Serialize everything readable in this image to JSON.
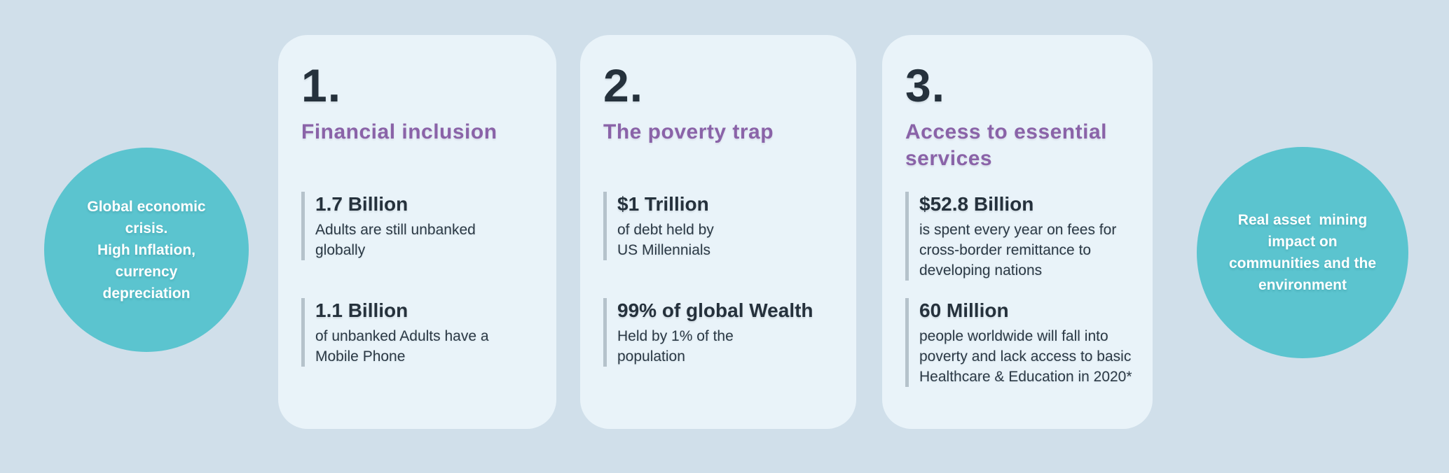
{
  "colors": {
    "background": "#d0dfea",
    "card_background": "#e9f3f9",
    "accent_teal": "#5bc4cf",
    "accent_purple": "#8a63a8",
    "text_dark": "#25313c",
    "stat_bar": "#b5c2cb",
    "circle_text": "#ffffff"
  },
  "left_circle": {
    "text": "Global economic\ncrisis.\nHigh Inflation,\ncurrency\ndepreciation"
  },
  "right_circle": {
    "text": "Real asset  mining\nimpact on\ncommunities and the\nenvironment"
  },
  "cards": [
    {
      "number": "1.",
      "title": "Financial inclusion",
      "stats": [
        {
          "value": "1.7 Billion",
          "description": "Adults are still unbanked\nglobally"
        },
        {
          "value": "1.1 Billion",
          "description": "of unbanked Adults have a\nMobile Phone"
        }
      ]
    },
    {
      "number": "2.",
      "title": "The poverty trap",
      "stats": [
        {
          "value": "$1 Trillion",
          "description": "of debt held by\nUS Millennials"
        },
        {
          "value": "99% of global Wealth",
          "description": "Held by 1% of the\npopulation"
        }
      ]
    },
    {
      "number": "3.",
      "title": "Access to essential\nservices",
      "stats": [
        {
          "value": "$52.8 Billion",
          "description": "is spent every year on fees for\ncross-border remittance to\ndeveloping nations"
        },
        {
          "value": "60 Million",
          "description": "people worldwide will fall into\npoverty and lack access to basic\nHealthcare & Education in 2020*"
        }
      ]
    }
  ]
}
